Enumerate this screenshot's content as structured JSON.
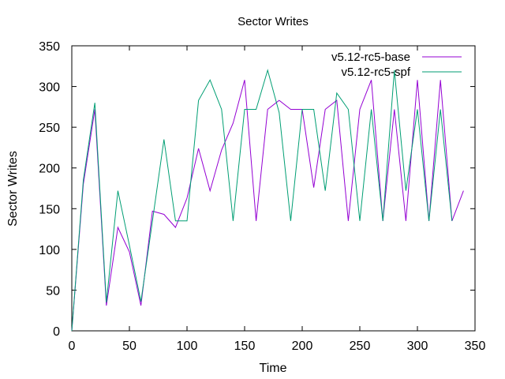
{
  "chart_data": {
    "type": "line",
    "title": "Sector Writes",
    "xlabel": "Time",
    "ylabel": "Sector Writes",
    "xlim": [
      0,
      350
    ],
    "ylim": [
      0,
      350
    ],
    "xticks": [
      0,
      50,
      100,
      150,
      200,
      250,
      300,
      350
    ],
    "yticks": [
      0,
      50,
      100,
      150,
      200,
      250,
      300,
      350
    ],
    "grid": false,
    "legend_position": "top-right",
    "series": [
      {
        "name": "v5.12-rc5-base",
        "color": "#9400d3",
        "x": [
          0,
          10,
          20,
          30,
          40,
          50,
          60,
          70,
          80,
          90,
          100,
          110,
          120,
          130,
          140,
          150,
          160,
          170,
          180,
          190,
          200,
          210,
          220,
          230,
          240,
          250,
          260,
          270,
          280,
          290,
          300,
          310,
          320,
          330,
          340
        ],
        "y": [
          0,
          180,
          272,
          31,
          127,
          97,
          31,
          147,
          143,
          127,
          163,
          224,
          172,
          222,
          255,
          308,
          135,
          272,
          283,
          272,
          272,
          176,
          272,
          283,
          135,
          272,
          308,
          135,
          272,
          135,
          308,
          135,
          308,
          135,
          172
        ]
      },
      {
        "name": "v5.12-rc5-spf",
        "color": "#009e73",
        "x": [
          0,
          10,
          20,
          30,
          40,
          50,
          60,
          70,
          80,
          90,
          100,
          110,
          120,
          130,
          140,
          150,
          160,
          170,
          180,
          190,
          200,
          210,
          220,
          230,
          240,
          250,
          260,
          270,
          280,
          290,
          300,
          310,
          320,
          330
        ],
        "y": [
          0,
          185,
          280,
          35,
          172,
          105,
          36,
          135,
          235,
          135,
          135,
          283,
          308,
          272,
          135,
          272,
          272,
          320,
          268,
          135,
          272,
          272,
          172,
          292,
          272,
          135,
          272,
          135,
          320,
          172,
          272,
          135,
          272,
          135
        ]
      }
    ]
  }
}
